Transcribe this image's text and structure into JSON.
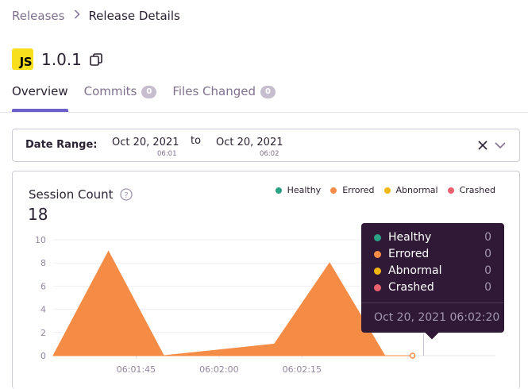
{
  "breadcrumb": {
    "parent": "Releases",
    "current": "Release Details"
  },
  "release": {
    "platform_logo": "JS",
    "version": "1.0.1"
  },
  "tabs": [
    {
      "label": "Overview",
      "active": true
    },
    {
      "label": "Commits",
      "count": "0"
    },
    {
      "label": "Files Changed",
      "count": "0"
    }
  ],
  "date_range": {
    "label": "Date Range:",
    "start_date": "Oct 20, 2021",
    "start_time": "06:01",
    "separator": "to",
    "end_date": "Oct 20, 2021",
    "end_time": "06:02"
  },
  "session_chart": {
    "title": "Session Count",
    "total": "18",
    "legend": [
      {
        "name": "Healthy",
        "color": "#2ba185"
      },
      {
        "name": "Errored",
        "color": "#f58c46"
      },
      {
        "name": "Abnormal",
        "color": "#f2b712"
      },
      {
        "name": "Crashed",
        "color": "#e9626e"
      }
    ]
  },
  "chart_data": {
    "type": "area",
    "title": "Session Count",
    "xlabel": "",
    "ylabel": "",
    "ylim": [
      0,
      10
    ],
    "yticks": [
      0,
      2,
      4,
      6,
      8,
      10
    ],
    "x_tick_labels": [
      "06:01:45",
      "06:02:00",
      "06:02:15"
    ],
    "x_seconds": [
      30,
      40,
      50,
      60,
      70,
      80,
      90,
      95
    ],
    "x_tick_seconds": [
      45,
      60,
      75
    ],
    "series": [
      {
        "name": "Healthy",
        "color": "#2ba185",
        "values": [
          0,
          0,
          0,
          0,
          0,
          0,
          0,
          0
        ]
      },
      {
        "name": "Errored",
        "color": "#f58c46",
        "values": [
          0,
          9,
          0,
          0.5,
          1,
          8,
          0,
          0
        ]
      },
      {
        "name": "Abnormal",
        "color": "#f2b712",
        "values": [
          0,
          0,
          0,
          0,
          0,
          0,
          0,
          0
        ]
      },
      {
        "name": "Crashed",
        "color": "#e9626e",
        "values": [
          0,
          0,
          0,
          0,
          0,
          0,
          0,
          0
        ]
      }
    ],
    "grid": true,
    "legend_position": "top-right"
  },
  "tooltip": {
    "rows": [
      {
        "name": "Healthy",
        "value": "0",
        "color": "#2ba185"
      },
      {
        "name": "Errored",
        "value": "0",
        "color": "#f58c46"
      },
      {
        "name": "Abnormal",
        "value": "0",
        "color": "#f2b712"
      },
      {
        "name": "Crashed",
        "value": "0",
        "color": "#e9626e"
      }
    ],
    "timestamp": "Oct 20, 2021 06:02:20"
  },
  "icons": {
    "copy": "copy-icon",
    "clear": "close-icon",
    "expand": "chevron-down-icon",
    "help": "help-circle-icon"
  }
}
